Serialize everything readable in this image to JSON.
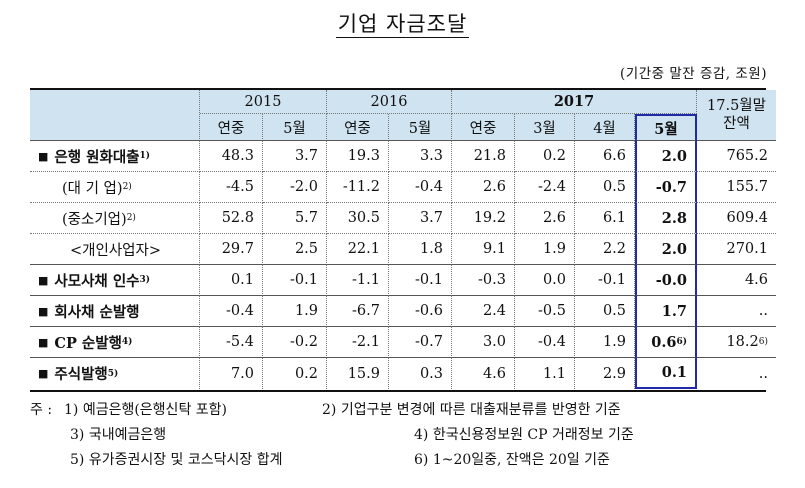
{
  "title": "기업 자금조달",
  "unit": "(기간중 말잔 증감, 조원)",
  "header": {
    "years": [
      "2015",
      "2016",
      "2017"
    ],
    "sub": {
      "y2015": [
        "연중",
        "5월"
      ],
      "y2016": [
        "연중",
        "5월"
      ],
      "y2017": [
        "연중",
        "3월",
        "4월",
        "5월"
      ]
    },
    "balance_line1": "17.5월말",
    "balance_line2": "잔액"
  },
  "rows": [
    {
      "label": "은행 원화대출",
      "sup": "1)",
      "values": [
        "48.3",
        "3.7",
        "19.3",
        "3.3",
        "21.8",
        "0.2",
        "6.6",
        "2.0",
        "765.2"
      ]
    },
    {
      "label": "(대 기 업)",
      "sup": "2)",
      "values": [
        "-4.5",
        "-2.0",
        "-11.2",
        "-0.4",
        "2.6",
        "-2.4",
        "0.5",
        "-0.7",
        "155.7"
      ]
    },
    {
      "label": "(중소기업)",
      "sup": "2)",
      "values": [
        "52.8",
        "5.7",
        "30.5",
        "3.7",
        "19.2",
        "2.6",
        "6.1",
        "2.8",
        "609.4"
      ]
    },
    {
      "label": "<개인사업자>",
      "sup": "",
      "values": [
        "29.7",
        "2.5",
        "22.1",
        "1.8",
        "9.1",
        "1.9",
        "2.2",
        "2.0",
        "270.1"
      ]
    },
    {
      "label": "사모사채 인수",
      "sup": "3)",
      "values": [
        "0.1",
        "-0.1",
        "-1.1",
        "-0.1",
        "-0.3",
        "0.0",
        "-0.1",
        "-0.0",
        "4.6"
      ]
    },
    {
      "label": "회사채 순발행",
      "sup": "",
      "values": [
        "-0.4",
        "1.9",
        "-6.7",
        "-0.6",
        "2.4",
        "-0.5",
        "0.5",
        "1.7",
        ".."
      ]
    },
    {
      "label": "CP 순발행",
      "sup": "4)",
      "values": [
        "-5.4",
        "-0.2",
        "-2.1",
        "-0.7",
        "3.0",
        "-0.4",
        "1.9",
        "0.6",
        "18.2"
      ],
      "may_sup": "6)",
      "bal_sup": "6)"
    },
    {
      "label": "주식발행",
      "sup": "5)",
      "values": [
        "7.0",
        "0.2",
        "15.9",
        "0.3",
        "4.6",
        "1.1",
        "2.9",
        "0.1",
        ".."
      ]
    }
  ],
  "bullet": "■",
  "notes": {
    "prefix": "주 :",
    "n1": "1) 예금은행(은행신탁 포함)",
    "n2": "2) 기업구분 변경에 따른 대출재분류를 반영한 기준",
    "n3": "3) 국내예금은행",
    "n4": "4) 한국신용정보원 CP 거래정보 기준",
    "n5": "5) 유가증권시장 및 코스닥시장 합계",
    "n6": "6) 1~20일중, 잔액은 20일 기준"
  }
}
